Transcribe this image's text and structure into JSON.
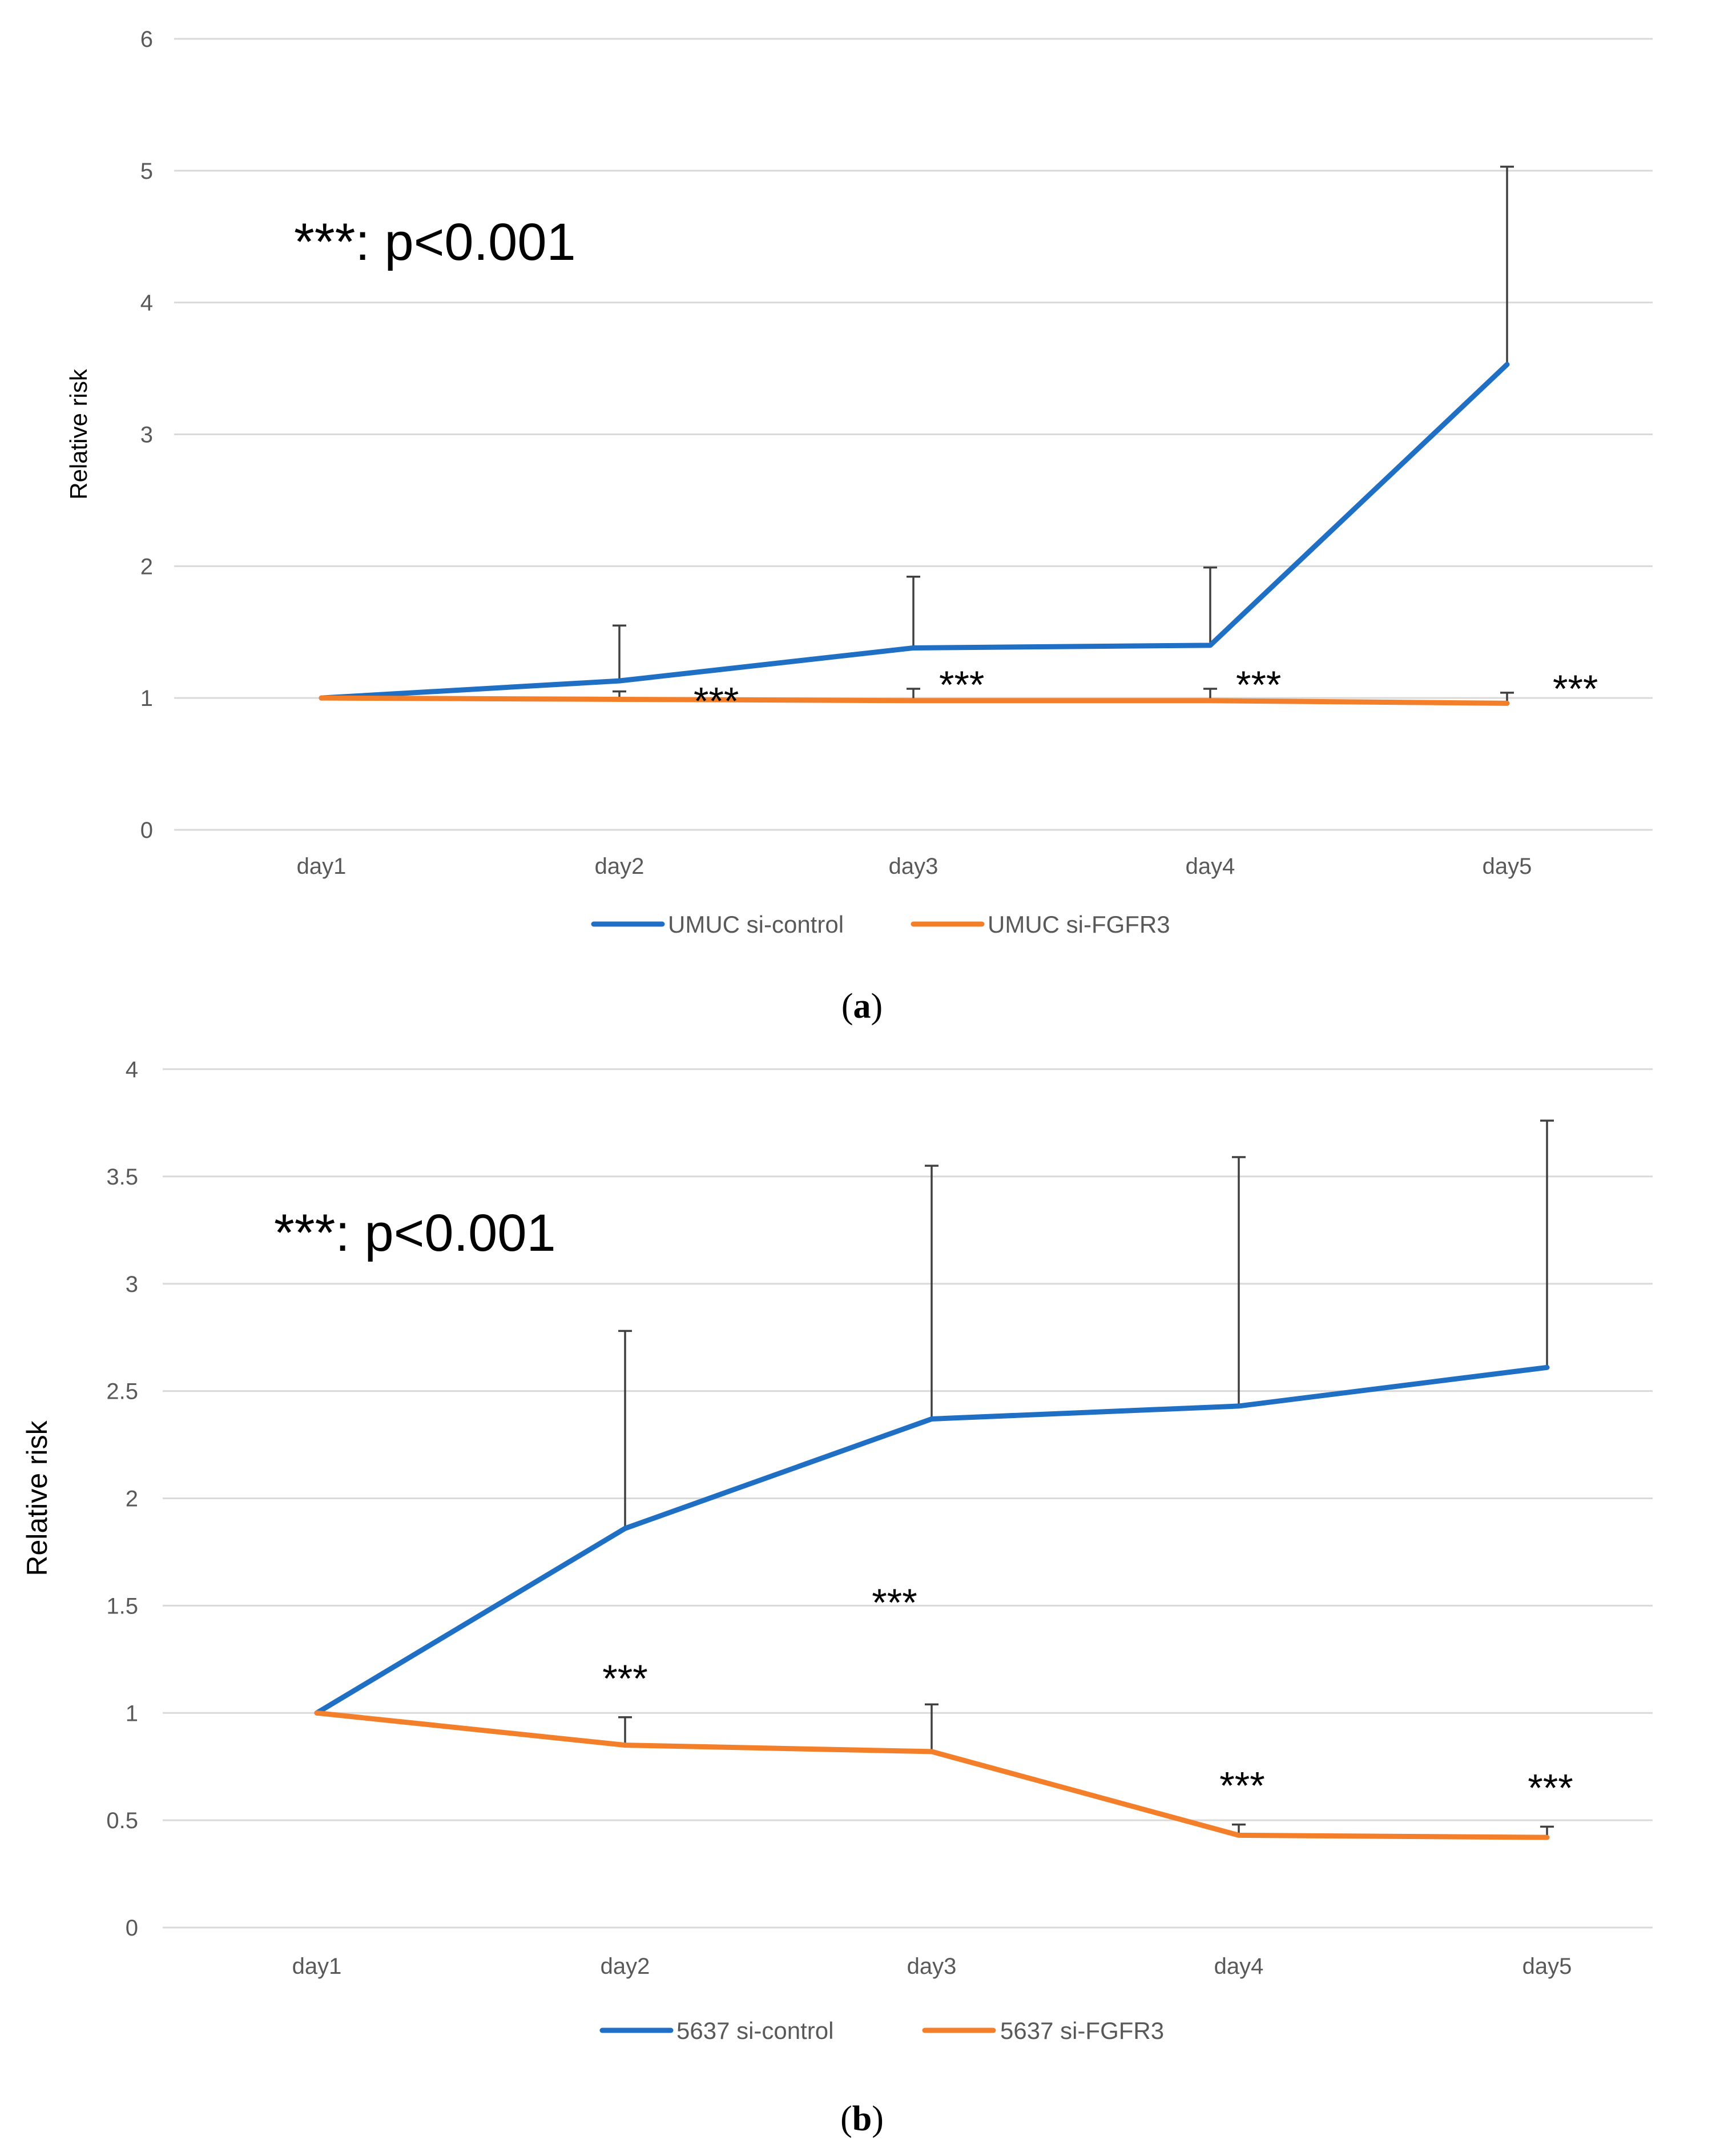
{
  "chart_data": [
    {
      "type": "line",
      "panel": "a",
      "caption_letter": "a",
      "ylabel": "Relative risk",
      "ylim": [
        0,
        6
      ],
      "yticks": [
        0,
        1,
        2,
        3,
        4,
        5,
        6
      ],
      "ytick_labels": [
        "0",
        "1",
        "2",
        "3",
        "4",
        "5",
        "6"
      ],
      "categories": [
        "day1",
        "day2",
        "day3",
        "day4",
        "day5"
      ],
      "series": [
        {
          "name": "UMUC si-control",
          "color": "#1f6fc4",
          "values": [
            1.0,
            1.13,
            1.38,
            1.4,
            3.53
          ],
          "error": [
            0.0,
            0.42,
            0.54,
            0.59,
            1.5
          ]
        },
        {
          "name": "UMUC si-FGFR3",
          "color": "#f47f2a",
          "values": [
            1.0,
            0.99,
            0.98,
            0.98,
            0.96
          ],
          "error": [
            0.0,
            0.06,
            0.09,
            0.09,
            0.08
          ]
        }
      ],
      "annotation": "***: p<0.001",
      "significance": [
        {
          "category_index": 1,
          "label": "***"
        },
        {
          "category_index": 2,
          "label": "***"
        },
        {
          "category_index": 3,
          "label": "***"
        },
        {
          "category_index": 4,
          "label": "***"
        }
      ],
      "legend_position": "bottom"
    },
    {
      "type": "line",
      "panel": "b",
      "caption_letter": "b",
      "ylabel": "Relative risk",
      "ylim": [
        0,
        4
      ],
      "yticks": [
        0,
        0.5,
        1,
        1.5,
        2,
        2.5,
        3,
        3.5,
        4
      ],
      "ytick_labels": [
        "0",
        "0.5",
        "1",
        "1.5",
        "2",
        "2.5",
        "3",
        "3.5",
        "4"
      ],
      "categories": [
        "day1",
        "day2",
        "day3",
        "day4",
        "day5"
      ],
      "series": [
        {
          "name": "5637 si-control",
          "color": "#1f6fc4",
          "values": [
            1.0,
            1.86,
            2.37,
            2.43,
            2.61
          ],
          "error": [
            0.0,
            0.92,
            1.18,
            1.16,
            1.15
          ]
        },
        {
          "name": "5637 si-FGFR3",
          "color": "#f47f2a",
          "values": [
            1.0,
            0.85,
            0.82,
            0.43,
            0.42
          ],
          "error": [
            0.0,
            0.13,
            0.22,
            0.05,
            0.05
          ]
        }
      ],
      "annotation": "***: p<0.001",
      "significance": [
        {
          "category_index": 1,
          "label": "***"
        },
        {
          "category_index": 2,
          "label": "***"
        },
        {
          "category_index": 3,
          "label": "***"
        },
        {
          "category_index": 4,
          "label": "***"
        }
      ],
      "legend_position": "bottom"
    }
  ]
}
